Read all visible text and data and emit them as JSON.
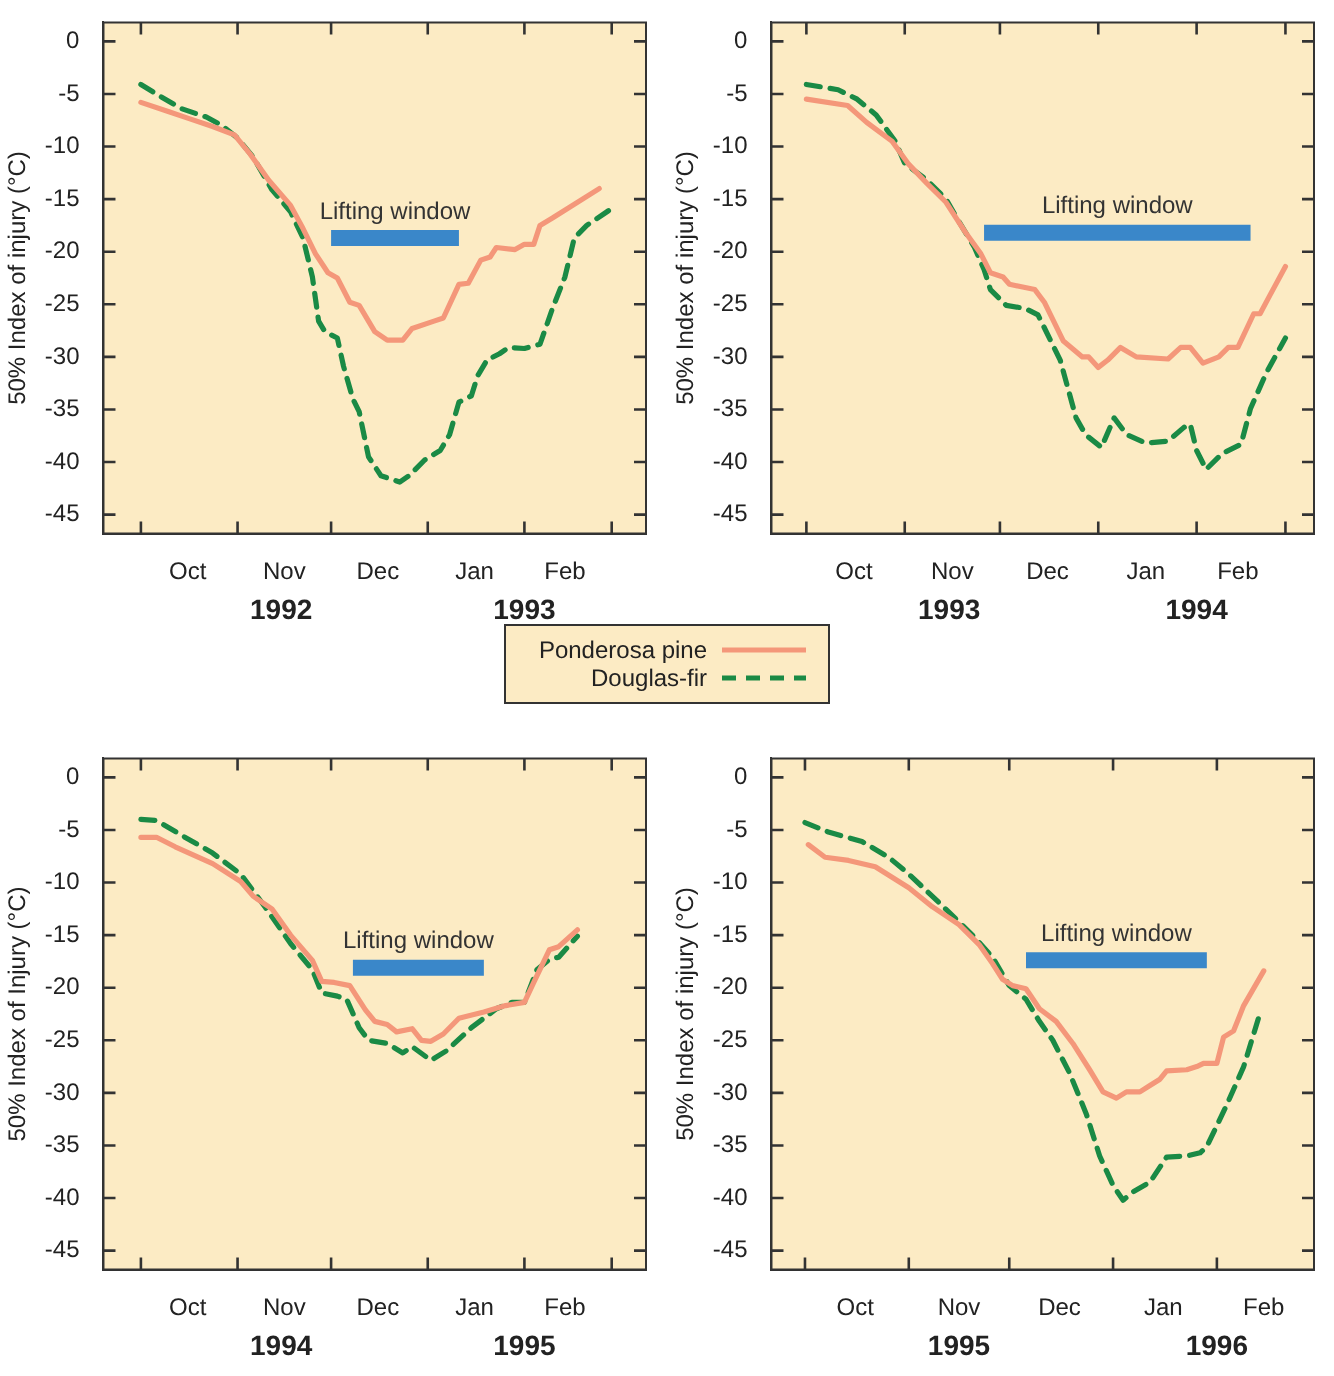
{
  "chart_data": [
    {
      "type": "line",
      "ylabel": "50% Index of injury (°C)",
      "xlim": [
        "1992-09-19",
        "1993-03-12"
      ],
      "ylim": [
        -46.8,
        1.8
      ],
      "yticks": [
        0,
        -5,
        -10,
        -15,
        -20,
        -25,
        -30,
        -35,
        -40,
        -45
      ],
      "xticks": [
        {
          "value": "1992-10-01",
          "label": null
        },
        {
          "value": "1992-10-16",
          "label": "Oct"
        },
        {
          "value": "1992-11-01",
          "label": null
        },
        {
          "value": "1992-11-16",
          "label": "Nov"
        },
        {
          "value": "1992-12-01",
          "label": null
        },
        {
          "value": "1992-12-16",
          "label": "Dec"
        },
        {
          "value": "1993-01-01",
          "label": null
        },
        {
          "value": "1993-01-16",
          "label": "Jan"
        },
        {
          "value": "1993-02-01",
          "label": null
        },
        {
          "value": "1993-02-14",
          "label": "Feb"
        },
        {
          "value": "1993-03-01",
          "label": null
        }
      ],
      "x2lim": [
        "1992-09-19",
        "1993-03-12"
      ],
      "x2ticks": [
        {
          "value": "1992-11-15",
          "label": "1992"
        },
        {
          "value": "1993-02-01",
          "label": "1993"
        }
      ],
      "marker": "none",
      "legend": "bottom",
      "series": [
        {
          "name": "Ponderosa pine",
          "color": "#f4977a",
          "line_style": "solid",
          "x": [
            "1992-10-01",
            "1992-10-10",
            "1992-10-16",
            "1992-10-24",
            "1992-10-31",
            "1992-11-05",
            "1992-11-11",
            "1992-11-18",
            "1992-11-22",
            "1992-11-26",
            "1992-11-30",
            "1992-12-03",
            "1992-12-07",
            "1992-12-10",
            "1992-12-15",
            "1992-12-19",
            "1992-12-24",
            "1992-12-27",
            "1993-01-03",
            "1993-01-06",
            "1993-01-11",
            "1993-01-14",
            "1993-01-18",
            "1993-01-21",
            "1993-01-23",
            "1993-01-29",
            "1993-02-01",
            "1993-02-04",
            "1993-02-06",
            "1993-02-10",
            "1993-02-25"
          ],
          "values": [
            -5.8,
            -6.7,
            -7.3,
            -8.1,
            -8.9,
            -10.7,
            -13.2,
            -15.6,
            -17.8,
            -20.2,
            -22.0,
            -22.5,
            -24.8,
            -25.1,
            -27.6,
            -28.4,
            -28.4,
            -27.3,
            -26.6,
            -26.3,
            -23.1,
            -23.0,
            -20.8,
            -20.5,
            -19.6,
            -19.8,
            -19.3,
            -19.3,
            -17.5,
            -16.8,
            -14.0
          ]
        },
        {
          "name": "Douglas-fir",
          "color": "#1a8a45",
          "line_style": "dashed",
          "x": [
            "1992-10-01",
            "1992-10-07",
            "1992-10-14",
            "1992-10-22",
            "1992-10-27",
            "1992-11-01",
            "1992-11-06",
            "1992-11-12",
            "1992-11-18",
            "1992-11-22",
            "1992-11-25",
            "1992-11-27",
            "1992-11-29",
            "1992-12-03",
            "1992-12-05",
            "1992-12-08",
            "1992-12-10",
            "1992-12-13",
            "1992-12-17",
            "1992-12-23",
            "1992-12-26",
            "1992-12-31",
            "1993-01-05",
            "1993-01-08",
            "1993-01-11",
            "1993-01-15",
            "1993-01-17",
            "1993-01-20",
            "1993-01-24",
            "1993-01-27",
            "1993-02-01",
            "1993-02-06",
            "1993-02-10",
            "1993-02-14",
            "1993-02-17",
            "1993-02-21",
            "1993-02-28"
          ],
          "values": [
            -4.1,
            -5.2,
            -6.4,
            -7.2,
            -8.0,
            -9.2,
            -11.0,
            -14.1,
            -16.2,
            -18.7,
            -22.4,
            -26.6,
            -27.6,
            -28.2,
            -30.9,
            -34.0,
            -35.2,
            -39.5,
            -41.3,
            -41.9,
            -41.3,
            -39.8,
            -38.9,
            -37.4,
            -34.3,
            -33.7,
            -31.8,
            -30.3,
            -29.7,
            -29.1,
            -29.2,
            -28.8,
            -25.4,
            -22.4,
            -18.7,
            -17.5,
            -16.1
          ]
        },
        {
          "name": "Lifting window",
          "color": "#3a87c9",
          "x": [
            "1992-12-01",
            "1993-01-11"
          ],
          "values": [
            -18.7,
            -18.7
          ]
        }
      ]
    },
    {
      "type": "line",
      "ylabel": "50% Index of injury (°C)",
      "xlim": [
        "1993-09-20",
        "1994-03-10"
      ],
      "ylim": [
        -46.8,
        1.8
      ],
      "yticks": [
        0,
        -5,
        -10,
        -15,
        -20,
        -25,
        -30,
        -35,
        -40,
        -45
      ],
      "xticks": [
        {
          "value": "1993-10-01",
          "label": null
        },
        {
          "value": "1993-10-16",
          "label": "Oct"
        },
        {
          "value": "1993-11-01",
          "label": null
        },
        {
          "value": "1993-11-16",
          "label": "Nov"
        },
        {
          "value": "1993-12-01",
          "label": null
        },
        {
          "value": "1993-12-16",
          "label": "Dec"
        },
        {
          "value": "1994-01-01",
          "label": null
        },
        {
          "value": "1994-01-16",
          "label": "Jan"
        },
        {
          "value": "1994-02-01",
          "label": null
        },
        {
          "value": "1994-02-14",
          "label": "Feb"
        },
        {
          "value": "1994-03-01",
          "label": null
        }
      ],
      "x2lim": [
        "1993-09-20",
        "1994-03-10"
      ],
      "x2ticks": [
        {
          "value": "1993-11-15",
          "label": "1993"
        },
        {
          "value": "1994-02-01",
          "label": "1994"
        }
      ],
      "marker": "none",
      "series": [
        {
          "color": "#f4977a",
          "line_style": "solid",
          "x": [
            "1993-10-01",
            "1993-10-14",
            "1993-10-20",
            "1993-10-28",
            "1993-11-02",
            "1993-11-08",
            "1993-11-14",
            "1993-11-20",
            "1993-11-25",
            "1993-11-28",
            "1993-12-02",
            "1993-12-04",
            "1993-12-12",
            "1993-12-15",
            "1993-12-21",
            "1993-12-27",
            "1993-12-29",
            "1994-01-01",
            "1994-01-04",
            "1994-01-08",
            "1994-01-13",
            "1994-01-23",
            "1994-01-27",
            "1994-01-30",
            "1994-02-03",
            "1994-02-08",
            "1994-02-11",
            "1994-02-14",
            "1994-02-19",
            "1994-02-21",
            "1994-02-24",
            "1994-03-01"
          ],
          "values": [
            -5.5,
            -6.1,
            -7.7,
            -9.5,
            -11.6,
            -13.5,
            -15.3,
            -18.1,
            -20.2,
            -22.0,
            -22.4,
            -23.1,
            -23.6,
            -24.8,
            -28.5,
            -30.0,
            -30.0,
            -31.0,
            -30.3,
            -29.1,
            -30.0,
            -30.2,
            -29.1,
            -29.1,
            -30.6,
            -30.0,
            -29.1,
            -29.1,
            -25.9,
            -25.9,
            -24.2,
            -21.4
          ]
        },
        {
          "color": "#1a8a45",
          "line_style": "dashed",
          "x": [
            "1993-10-01",
            "1993-10-11",
            "1993-10-17",
            "1993-10-23",
            "1993-10-29",
            "1993-11-01",
            "1993-11-08",
            "1993-11-14",
            "1993-11-18",
            "1993-11-23",
            "1993-11-26",
            "1993-11-28",
            "1993-12-03",
            "1993-12-09",
            "1993-12-13",
            "1993-12-20",
            "1993-12-25",
            "1993-12-28",
            "1994-01-02",
            "1994-01-06",
            "1994-01-10",
            "1994-01-16",
            "1994-01-23",
            "1994-01-28",
            "1994-01-30",
            "1994-02-01",
            "1994-02-04",
            "1994-02-09",
            "1994-02-15",
            "1994-02-18",
            "1994-02-23",
            "1994-03-01"
          ],
          "values": [
            -4.1,
            -4.6,
            -5.5,
            -7.0,
            -9.5,
            -11.6,
            -13.2,
            -15.0,
            -17.1,
            -19.6,
            -21.7,
            -23.6,
            -25.1,
            -25.4,
            -26.0,
            -30.3,
            -35.8,
            -37.4,
            -38.6,
            -35.8,
            -37.4,
            -38.2,
            -38.0,
            -36.7,
            -36.4,
            -38.9,
            -40.7,
            -39.2,
            -38.3,
            -34.9,
            -31.5,
            -28.2
          ]
        },
        {
          "name": "Lifting window",
          "color": "#3a87c9",
          "x": [
            "1993-11-26",
            "1994-02-18"
          ],
          "values": [
            -18.2,
            -18.2
          ]
        }
      ]
    },
    {
      "type": "line",
      "ylabel": "50% Index of Injury (°C)",
      "xlim": [
        "1994-09-19",
        "1995-03-12"
      ],
      "ylim": [
        -46.8,
        1.8
      ],
      "yticks": [
        0,
        -5,
        -10,
        -15,
        -20,
        -25,
        -30,
        -35,
        -40,
        -45
      ],
      "xticks": [
        {
          "value": "1994-10-01",
          "label": null
        },
        {
          "value": "1994-10-16",
          "label": "Oct"
        },
        {
          "value": "1994-11-01",
          "label": null
        },
        {
          "value": "1994-11-16",
          "label": "Nov"
        },
        {
          "value": "1994-12-01",
          "label": null
        },
        {
          "value": "1994-12-16",
          "label": "Dec"
        },
        {
          "value": "1995-01-01",
          "label": null
        },
        {
          "value": "1995-01-16",
          "label": "Jan"
        },
        {
          "value": "1995-02-01",
          "label": null
        },
        {
          "value": "1995-02-14",
          "label": "Feb"
        },
        {
          "value": "1995-03-01",
          "label": null
        }
      ],
      "x2lim": [
        "1994-09-19",
        "1995-03-12"
      ],
      "x2ticks": [
        {
          "value": "1994-11-15",
          "label": "1994"
        },
        {
          "value": "1995-02-01",
          "label": "1995"
        }
      ],
      "marker": "none",
      "series": [
        {
          "color": "#f4977a",
          "line_style": "solid",
          "x": [
            "1994-10-01",
            "1994-10-06",
            "1994-10-12",
            "1994-10-24",
            "1994-11-02",
            "1994-11-06",
            "1994-11-12",
            "1994-11-18",
            "1994-11-25",
            "1994-11-28",
            "1994-12-02",
            "1994-12-07",
            "1994-12-12",
            "1994-12-15",
            "1994-12-19",
            "1994-12-22",
            "1994-12-27",
            "1994-12-30",
            "1995-01-02",
            "1995-01-06",
            "1995-01-11",
            "1995-01-19",
            "1995-01-26",
            "1995-02-01",
            "1995-02-04",
            "1995-02-09",
            "1995-02-12",
            "1995-02-18"
          ],
          "values": [
            -5.7,
            -5.7,
            -6.6,
            -8.2,
            -9.9,
            -11.3,
            -12.5,
            -15.0,
            -17.4,
            -19.4,
            -19.5,
            -19.8,
            -22.1,
            -23.2,
            -23.5,
            -24.2,
            -23.9,
            -25.0,
            -25.1,
            -24.4,
            -22.9,
            -22.3,
            -21.7,
            -21.4,
            -19.5,
            -16.4,
            -16.1,
            -14.5
          ]
        },
        {
          "color": "#1a8a45",
          "line_style": "dashed",
          "x": [
            "1994-10-01",
            "1994-10-06",
            "1994-10-14",
            "1994-10-24",
            "1994-11-02",
            "1994-11-10",
            "1994-11-18",
            "1994-11-25",
            "1994-11-28",
            "1994-12-03",
            "1994-12-06",
            "1994-12-10",
            "1994-12-13",
            "1994-12-19",
            "1994-12-24",
            "1994-12-27",
            "1995-01-02",
            "1995-01-07",
            "1995-01-15",
            "1995-01-23",
            "1995-01-28",
            "1995-02-01",
            "1995-02-05",
            "1995-02-09",
            "1995-02-12",
            "1995-02-18"
          ],
          "values": [
            -4.0,
            -4.1,
            -5.5,
            -7.2,
            -9.2,
            -12.4,
            -15.8,
            -18.3,
            -20.5,
            -20.8,
            -21.1,
            -23.8,
            -25.0,
            -25.3,
            -26.2,
            -25.6,
            -26.9,
            -26.0,
            -23.8,
            -22.0,
            -21.4,
            -21.4,
            -18.3,
            -17.3,
            -17.1,
            -15.1
          ]
        },
        {
          "name": "Lifting window",
          "color": "#3a87c9",
          "x": [
            "1994-12-08",
            "1995-01-19"
          ],
          "values": [
            -18.1,
            -18.1
          ]
        }
      ]
    },
    {
      "type": "line",
      "ylabel": "50% Index of injury (°C)",
      "xlim": [
        "1995-09-21",
        "1996-03-01"
      ],
      "ylim": [
        -46.8,
        1.8
      ],
      "yticks": [
        0,
        -5,
        -10,
        -15,
        -20,
        -25,
        -30,
        -35,
        -40,
        -45
      ],
      "xticks": [
        {
          "value": "1995-10-01",
          "label": null
        },
        {
          "value": "1995-10-16",
          "label": "Oct"
        },
        {
          "value": "1995-11-01",
          "label": null
        },
        {
          "value": "1995-11-16",
          "label": "Nov"
        },
        {
          "value": "1995-12-01",
          "label": null
        },
        {
          "value": "1995-12-16",
          "label": "Dec"
        },
        {
          "value": "1996-01-01",
          "label": null
        },
        {
          "value": "1996-01-16",
          "label": "Jan"
        },
        {
          "value": "1996-02-01",
          "label": null
        },
        {
          "value": "1996-02-15",
          "label": "Feb"
        }
      ],
      "x2lim": [
        "1995-09-21",
        "1996-03-01"
      ],
      "x2ticks": [
        {
          "value": "1995-11-16",
          "label": "1995"
        },
        {
          "value": "1996-02-01",
          "label": "1996"
        }
      ],
      "marker": "none",
      "series": [
        {
          "color": "#f4977a",
          "line_style": "solid",
          "x": [
            "1995-10-02",
            "1995-10-07",
            "1995-10-14",
            "1995-10-22",
            "1995-11-01",
            "1995-11-08",
            "1995-11-16",
            "1995-11-22",
            "1995-11-26",
            "1995-11-29",
            "1995-12-02",
            "1995-12-06",
            "1995-12-10",
            "1995-12-15",
            "1995-12-20",
            "1995-12-25",
            "1995-12-29",
            "1996-01-02",
            "1996-01-05",
            "1996-01-09",
            "1996-01-12",
            "1996-01-15",
            "1996-01-17",
            "1996-01-23",
            "1996-01-26",
            "1996-01-28",
            "1996-02-01",
            "1996-02-03",
            "1996-02-06",
            "1996-02-09",
            "1996-02-15"
          ],
          "values": [
            -6.4,
            -7.6,
            -7.9,
            -8.5,
            -10.5,
            -12.3,
            -14.0,
            -15.9,
            -17.7,
            -19.2,
            -19.8,
            -20.1,
            -22.0,
            -23.2,
            -25.3,
            -27.8,
            -29.9,
            -30.5,
            -29.9,
            -29.9,
            -29.3,
            -28.7,
            -27.9,
            -27.8,
            -27.5,
            -27.2,
            -27.2,
            -24.7,
            -24.1,
            -21.7,
            -18.4
          ]
        },
        {
          "color": "#1a8a45",
          "line_style": "dashed",
          "x": [
            "1995-10-01",
            "1995-10-08",
            "1995-10-18",
            "1995-10-26",
            "1995-11-01",
            "1995-11-10",
            "1995-11-20",
            "1995-11-26",
            "1995-12-01",
            "1995-12-06",
            "1995-12-10",
            "1995-12-14",
            "1995-12-19",
            "1995-12-24",
            "1995-12-28",
            "1996-01-01",
            "1996-01-04",
            "1996-01-07",
            "1996-01-12",
            "1996-01-17",
            "1996-01-23",
            "1996-01-27",
            "1996-01-29",
            "1996-02-04",
            "1996-02-09",
            "1996-02-14"
          ],
          "values": [
            -4.3,
            -5.2,
            -6.1,
            -7.6,
            -9.2,
            -11.9,
            -15.0,
            -17.1,
            -19.8,
            -21.1,
            -23.2,
            -25.0,
            -28.1,
            -32.0,
            -36.0,
            -38.8,
            -40.2,
            -39.4,
            -38.5,
            -36.1,
            -36.0,
            -35.7,
            -35.1,
            -31.1,
            -27.5,
            -22.3
          ]
        },
        {
          "name": "Lifting window",
          "color": "#3a87c9",
          "x": [
            "1995-12-06",
            "1996-01-29"
          ],
          "values": [
            -17.4,
            -17.4
          ]
        }
      ]
    }
  ]
}
